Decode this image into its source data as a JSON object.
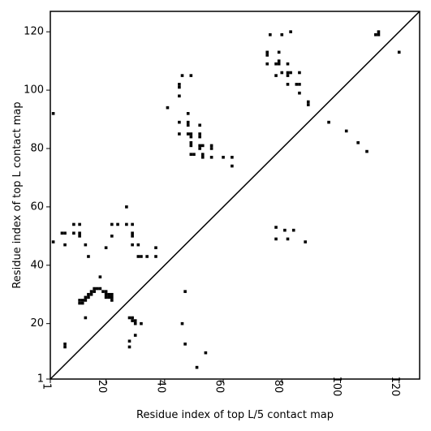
{
  "chart_data": {
    "type": "scatter",
    "title": "",
    "xlabel": "Residue index of top L/5 contact map",
    "ylabel": "Residue index of top L contact map",
    "xlim": [
      1,
      127
    ],
    "ylim": [
      1,
      127
    ],
    "xticks": [
      1,
      20,
      40,
      60,
      80,
      100,
      120
    ],
    "yticks": [
      1,
      20,
      40,
      60,
      80,
      100,
      120
    ],
    "grid": false,
    "legend": "none",
    "diagonal": true,
    "marker": "square",
    "color": "#000000",
    "series": [
      {
        "points": [
          [
            2,
            92
          ],
          [
            2,
            48
          ],
          [
            5,
            51
          ],
          [
            6,
            51
          ],
          [
            6,
            47
          ],
          [
            6,
            12
          ],
          [
            6,
            13
          ],
          [
            9,
            54
          ],
          [
            9,
            51
          ],
          [
            11,
            54
          ],
          [
            11,
            51
          ],
          [
            11,
            50
          ],
          [
            13,
            47
          ],
          [
            13,
            22
          ],
          [
            14,
            43
          ],
          [
            11,
            27
          ],
          [
            11,
            28
          ],
          [
            12,
            27
          ],
          [
            12,
            28
          ],
          [
            13,
            28
          ],
          [
            13,
            29
          ],
          [
            14,
            29
          ],
          [
            14,
            30
          ],
          [
            15,
            30
          ],
          [
            15,
            31
          ],
          [
            16,
            31
          ],
          [
            16,
            32
          ],
          [
            17,
            32
          ],
          [
            18,
            32
          ],
          [
            19,
            31
          ],
          [
            20,
            31
          ],
          [
            20,
            30
          ],
          [
            20,
            29
          ],
          [
            21,
            29
          ],
          [
            21,
            30
          ],
          [
            22,
            29
          ],
          [
            22,
            30
          ],
          [
            22,
            28
          ],
          [
            18,
            36
          ],
          [
            20,
            46
          ],
          [
            22,
            54
          ],
          [
            22,
            50
          ],
          [
            24,
            54
          ],
          [
            27,
            54
          ],
          [
            27,
            60
          ],
          [
            28,
            22
          ],
          [
            28,
            14
          ],
          [
            28,
            12
          ],
          [
            29,
            22
          ],
          [
            29,
            21
          ],
          [
            29,
            54
          ],
          [
            29,
            51
          ],
          [
            29,
            50
          ],
          [
            29,
            47
          ],
          [
            30,
            21
          ],
          [
            30,
            20
          ],
          [
            30,
            16
          ],
          [
            31,
            47
          ],
          [
            31,
            43
          ],
          [
            32,
            43
          ],
          [
            32,
            20
          ],
          [
            34,
            43
          ],
          [
            37,
            46
          ],
          [
            37,
            43
          ],
          [
            41,
            94
          ],
          [
            45,
            101
          ],
          [
            45,
            102
          ],
          [
            45,
            98
          ],
          [
            45,
            89
          ],
          [
            45,
            85
          ],
          [
            46,
            105
          ],
          [
            46,
            20
          ],
          [
            47,
            31
          ],
          [
            47,
            13
          ],
          [
            48,
            92
          ],
          [
            48,
            89
          ],
          [
            48,
            88
          ],
          [
            48,
            85
          ],
          [
            49,
            105
          ],
          [
            49,
            85
          ],
          [
            49,
            84
          ],
          [
            49,
            82
          ],
          [
            49,
            81
          ],
          [
            49,
            78
          ],
          [
            50,
            78
          ],
          [
            51,
            5
          ],
          [
            52,
            88
          ],
          [
            52,
            85
          ],
          [
            52,
            84
          ],
          [
            52,
            81
          ],
          [
            52,
            80
          ],
          [
            53,
            81
          ],
          [
            53,
            78
          ],
          [
            53,
            77
          ],
          [
            54,
            10
          ],
          [
            56,
            81
          ],
          [
            56,
            80
          ],
          [
            56,
            77
          ],
          [
            60,
            77
          ],
          [
            63,
            77
          ],
          [
            63,
            74
          ],
          [
            75,
            112
          ],
          [
            75,
            113
          ],
          [
            75,
            109
          ],
          [
            76,
            119
          ],
          [
            78,
            109
          ],
          [
            78,
            105
          ],
          [
            78,
            53
          ],
          [
            78,
            49
          ],
          [
            79,
            113
          ],
          [
            79,
            110
          ],
          [
            79,
            109
          ],
          [
            80,
            119
          ],
          [
            80,
            106
          ],
          [
            81,
            52
          ],
          [
            82,
            109
          ],
          [
            82,
            106
          ],
          [
            82,
            105
          ],
          [
            82,
            102
          ],
          [
            82,
            49
          ],
          [
            83,
            120
          ],
          [
            83,
            106
          ],
          [
            84,
            52
          ],
          [
            85,
            102
          ],
          [
            86,
            106
          ],
          [
            86,
            102
          ],
          [
            86,
            99
          ],
          [
            88,
            48
          ],
          [
            89,
            96
          ],
          [
            89,
            95
          ],
          [
            96,
            89
          ],
          [
            102,
            86
          ],
          [
            106,
            82
          ],
          [
            109,
            79
          ],
          [
            113,
            119
          ],
          [
            113,
            120
          ],
          [
            112,
            119
          ],
          [
            120,
            113
          ]
        ]
      }
    ]
  }
}
